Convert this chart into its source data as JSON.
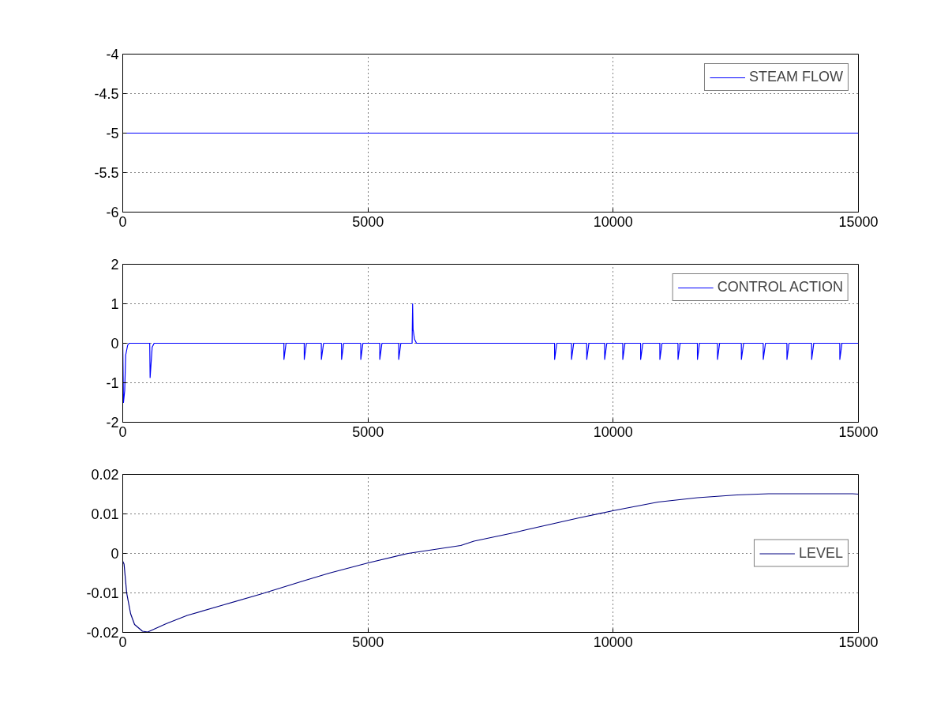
{
  "chart_data": [
    {
      "type": "line",
      "x": [
        0,
        15000
      ],
      "series": [
        {
          "name": "STEAM FLOW",
          "color": "#0000ff",
          "values": [
            -5,
            -5
          ]
        }
      ],
      "xlim": [
        0,
        15000
      ],
      "xticks": [
        0,
        5000,
        10000,
        15000
      ],
      "ylim": [
        -6,
        -4
      ],
      "yticks": [
        -6,
        -5.5,
        -5,
        -4.5,
        -4
      ],
      "grid": true,
      "legend": "top right"
    },
    {
      "type": "line",
      "x": [
        0,
        15,
        40,
        60,
        100,
        130,
        550,
        558,
        600,
        640,
        3286,
        3287,
        3330,
        3700,
        3701,
        3745,
        4049,
        4050,
        4095,
        4461,
        4462,
        4505,
        4853,
        4854,
        4897,
        5240,
        5241,
        5285,
        5626,
        5627,
        5670,
        5900,
        5910,
        5920,
        5950,
        5990,
        8805,
        8806,
        8850,
        9149,
        9150,
        9195,
        9460,
        9461,
        9505,
        9825,
        9826,
        9870,
        10195,
        10196,
        10240,
        10559,
        10560,
        10605,
        10951,
        10952,
        10995,
        11321,
        11322,
        11365,
        11717,
        11718,
        11760,
        12126,
        12127,
        12170,
        12613,
        12614,
        12660,
        13059,
        13060,
        13105,
        13542,
        13543,
        13585,
        14046,
        14047,
        14090,
        14620,
        14621,
        14665,
        15000
      ],
      "series": [
        {
          "name": "CONTROL ACTION",
          "color": "#0000ff",
          "values": [
            0,
            -1.5,
            -1.2,
            -0.3,
            -0.05,
            0,
            0,
            -0.87,
            -0.1,
            0,
            0,
            -0.41,
            0,
            0,
            -0.41,
            0,
            0,
            -0.41,
            0,
            0,
            -0.41,
            0,
            0,
            -0.41,
            0,
            0,
            -0.41,
            0,
            0,
            -0.41,
            0,
            0,
            1.0,
            0.35,
            0.1,
            0,
            0,
            -0.41,
            0,
            0,
            -0.41,
            0,
            0,
            -0.41,
            0,
            0,
            -0.41,
            0,
            0,
            -0.41,
            0,
            0,
            -0.41,
            0,
            0,
            -0.41,
            0,
            0,
            -0.41,
            0,
            0,
            -0.41,
            0,
            0,
            -0.41,
            0,
            0,
            -0.41,
            0,
            0,
            -0.41,
            0,
            0,
            -0.41,
            0,
            0,
            -0.41,
            0,
            0,
            -0.41,
            0,
            0
          ]
        }
      ],
      "xlim": [
        0,
        15000
      ],
      "xticks": [
        0,
        5000,
        10000,
        15000
      ],
      "ylim": [
        -2,
        2
      ],
      "yticks": [
        -2,
        -1,
        0,
        1,
        2
      ],
      "grid": true,
      "legend": "top right"
    },
    {
      "type": "line",
      "x": [
        0,
        27,
        80,
        161,
        241,
        402,
        510,
        671,
        885,
        1314,
        2064,
        2816,
        3674,
        4210,
        5004,
        5820,
        6892,
        7160,
        7965,
        8233,
        9305,
        9992,
        10914,
        11719,
        12523,
        13167,
        14132,
        14883,
        15000
      ],
      "series": [
        {
          "name": "LEVEL",
          "color": "#000080",
          "values": [
            -0.002,
            -0.0027,
            -0.01,
            -0.0153,
            -0.018,
            -0.0197,
            -0.0199,
            -0.019,
            -0.0178,
            -0.0157,
            -0.013,
            -0.0103,
            -0.007,
            -0.005,
            -0.0024,
            0,
            0.002,
            0.0031,
            0.0052,
            0.006,
            0.009,
            0.0108,
            0.013,
            0.0141,
            0.0148,
            0.0151,
            0.0151,
            0.0151,
            0.015
          ]
        }
      ],
      "xlim": [
        0,
        15000
      ],
      "xticks": [
        0,
        5000,
        10000,
        15000
      ],
      "ylim": [
        -0.02,
        0.02
      ],
      "yticks": [
        -0.02,
        -0.01,
        0,
        0.01,
        0.02
      ],
      "grid": true,
      "legend": "right"
    }
  ]
}
